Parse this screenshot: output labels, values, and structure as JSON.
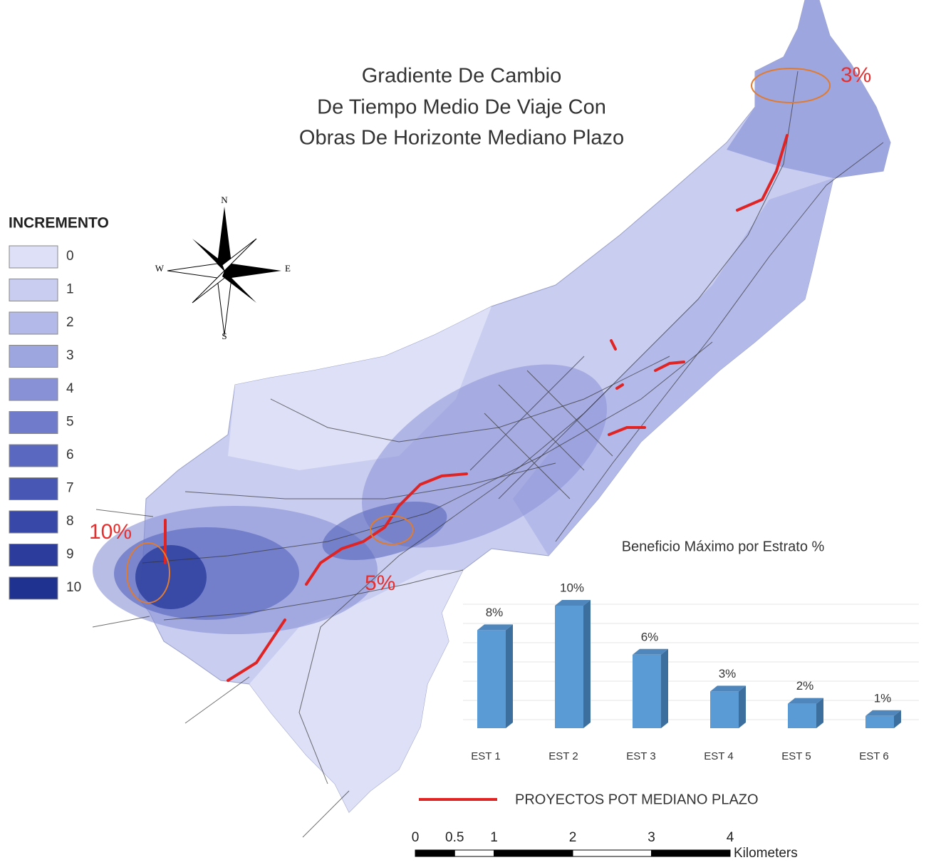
{
  "title": [
    "Gradiente De Cambio",
    "De Tiempo Medio De Viaje Con",
    "Obras De Horizonte Mediano Plazo"
  ],
  "legend": {
    "title": "INCREMENTO",
    "classes": [
      {
        "label": 0,
        "color": "#dde0f6"
      },
      {
        "label": 1,
        "color": "#c9cdf0"
      },
      {
        "label": 2,
        "color": "#b3b9e9"
      },
      {
        "label": 3,
        "color": "#9ea6e0"
      },
      {
        "label": 4,
        "color": "#8891d6"
      },
      {
        "label": 5,
        "color": "#707bcb"
      },
      {
        "label": 6,
        "color": "#5b68c0"
      },
      {
        "label": 7,
        "color": "#4857b4"
      },
      {
        "label": 8,
        "color": "#3848a8"
      },
      {
        "label": 9,
        "color": "#2b3c9c"
      },
      {
        "label": 10,
        "color": "#1f3290"
      }
    ]
  },
  "compass": {
    "north": "N",
    "south": "S",
    "east": "E",
    "west": "W"
  },
  "annotations": [
    "10%",
    "5%",
    "3%"
  ],
  "projects_legend": "PROYECTOS POT MEDIANO PLAZO",
  "scale_bar": {
    "ticks": [
      0,
      0.5,
      1,
      2,
      3,
      4
    ],
    "unit": "Kilometers"
  },
  "chart_data": {
    "type": "bar",
    "title": "Beneficio Máximo por Estrato %",
    "categories": [
      "EST 1",
      "EST 2",
      "EST 3",
      "EST 4",
      "EST 5",
      "EST 6"
    ],
    "values": [
      8,
      10,
      6,
      3,
      2,
      1
    ],
    "value_labels": [
      "8%",
      "10%",
      "6%",
      "3%",
      "2%",
      "1%"
    ],
    "color": "#5b9bd5",
    "ylim": [
      0,
      10
    ]
  }
}
